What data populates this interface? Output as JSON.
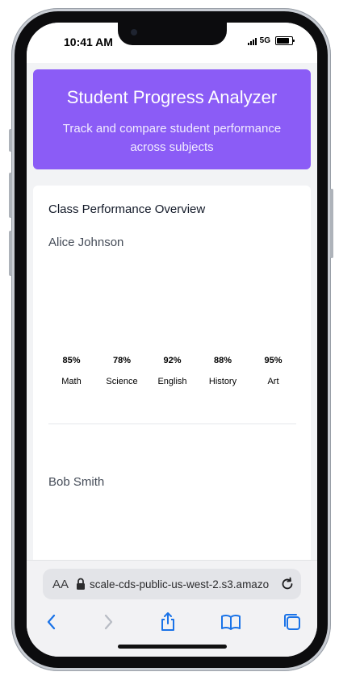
{
  "status_bar": {
    "time": "10:41 AM",
    "network": "5G"
  },
  "app": {
    "title": "Student Progress Analyzer",
    "subtitle": "Track and compare student performance across subjects",
    "accent_color": "#8b5cf6"
  },
  "overview": {
    "title": "Class Performance Overview",
    "students": [
      {
        "name": "Alice Johnson",
        "scores": [
          {
            "subject": "Math",
            "value_label": "85%",
            "value": 85
          },
          {
            "subject": "Science",
            "value_label": "78%",
            "value": 78
          },
          {
            "subject": "English",
            "value_label": "92%",
            "value": 92
          },
          {
            "subject": "History",
            "value_label": "88%",
            "value": 88
          },
          {
            "subject": "Art",
            "value_label": "95%",
            "value": 95
          }
        ]
      },
      {
        "name": "Bob Smith"
      }
    ]
  },
  "browser": {
    "aa_label": "AA",
    "url": "scale-cds-public-us-west-2.s3.amazo",
    "icons": [
      "lock-icon",
      "reload-icon",
      "back-icon",
      "forward-icon",
      "share-icon",
      "bookmarks-icon",
      "tabs-icon"
    ]
  }
}
